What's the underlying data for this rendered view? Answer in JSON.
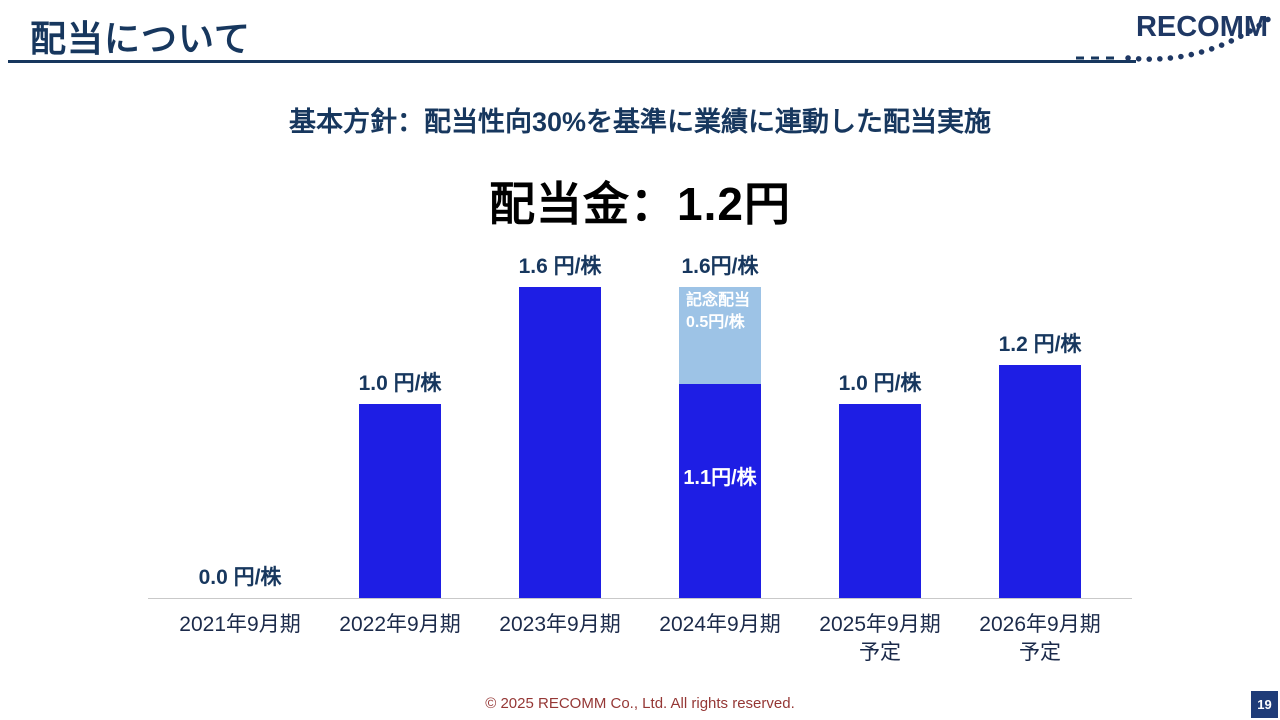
{
  "slide": {
    "title": "配当について",
    "logo_text": "RECOMM",
    "policy_heading": "基本方針：配当性向30%を基準に業績に連動した配当実施",
    "dividend_heading": "配当金：1.2円",
    "footer": "© 2025 RECOMM Co., Ltd. All rights reserved.",
    "page_number": "19"
  },
  "colors": {
    "title_navy": "#17375E",
    "dividend_bar": "#1E1EE4",
    "commemorative_bar": "#9DC3E6",
    "axis_line": "#C9C9C9",
    "footer_red": "#953735"
  },
  "chart_data": {
    "type": "bar",
    "unit": "円/株",
    "ylim": [
      0,
      1.75
    ],
    "legend_position": "none",
    "bars": [
      {
        "category": "2021年9月期",
        "total": 0.0,
        "value_label": "0.0 円/株",
        "segments": []
      },
      {
        "category": "2022年9月期",
        "total": 1.0,
        "value_label": "1.0 円/株",
        "segments": [
          {
            "name": "ordinary",
            "value": 1.0,
            "color": "primary"
          }
        ]
      },
      {
        "category": "2023年9月期",
        "total": 1.6,
        "value_label": "1.6 円/株",
        "segments": [
          {
            "name": "ordinary",
            "value": 1.6,
            "color": "primary"
          }
        ]
      },
      {
        "category": "2024年9月期",
        "total": 1.6,
        "value_label": "1.6円/株",
        "segments": [
          {
            "name": "ordinary",
            "value": 1.1,
            "color": "primary",
            "label": "1.1円/株"
          },
          {
            "name": "commemorative",
            "value": 0.5,
            "color": "secondary",
            "label": "記念配当\n0.5円/株"
          }
        ]
      },
      {
        "category": "2025年9月期",
        "note": "予定",
        "total": 1.0,
        "value_label": "1.0 円/株",
        "segments": [
          {
            "name": "ordinary",
            "value": 1.0,
            "color": "primary"
          }
        ]
      },
      {
        "category": "2026年9月期",
        "note": "予定",
        "total": 1.2,
        "value_label": "1.2 円/株",
        "segments": [
          {
            "name": "ordinary",
            "value": 1.2,
            "color": "primary"
          }
        ]
      }
    ]
  }
}
